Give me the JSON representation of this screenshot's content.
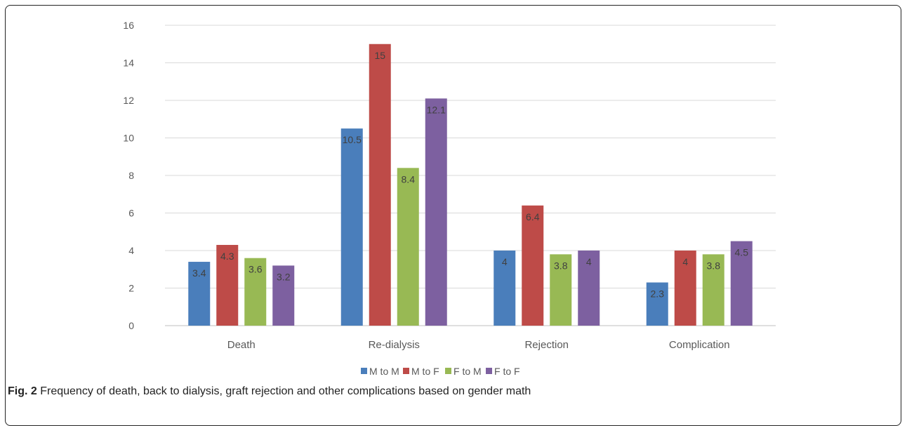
{
  "chart_data": {
    "type": "bar",
    "categories": [
      "Death",
      "Re-dialysis",
      "Rejection",
      "Complication"
    ],
    "series": [
      {
        "name": "M to M",
        "values": [
          3.4,
          10.5,
          4,
          2.3
        ],
        "labels": [
          "3.4",
          "10.5",
          "4",
          "2.3"
        ]
      },
      {
        "name": "M to F",
        "values": [
          4.3,
          15,
          6.4,
          4
        ],
        "labels": [
          "4.3",
          "15",
          "6.4",
          "4"
        ]
      },
      {
        "name": "F to M",
        "values": [
          3.6,
          8.4,
          3.8,
          3.8
        ],
        "labels": [
          "3.6",
          "8.4",
          "3.8",
          "3.8"
        ]
      },
      {
        "name": "F to F",
        "values": [
          3.2,
          12.1,
          4,
          4.5
        ],
        "labels": [
          "3.2",
          "12.1",
          "4",
          "4.5"
        ]
      }
    ],
    "ylim": [
      0,
      16
    ],
    "yticks": [
      0,
      2,
      4,
      6,
      8,
      10,
      12,
      14,
      16
    ],
    "grid": true,
    "legend_position": "bottom",
    "colors": [
      "#4a7ebb",
      "#be4b48",
      "#98b954",
      "#7d60a0"
    ]
  },
  "caption": {
    "label": "Fig. 2",
    "text": "Frequency of death, back to dialysis, graft rejection and other complications based on gender math"
  }
}
